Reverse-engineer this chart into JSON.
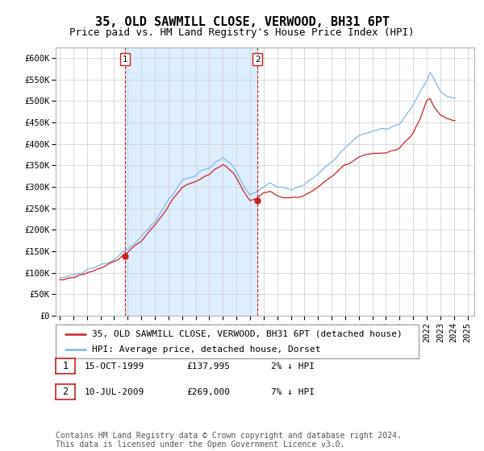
{
  "title": "35, OLD SAWMILL CLOSE, VERWOOD, BH31 6PT",
  "subtitle": "Price paid vs. HM Land Registry's House Price Index (HPI)",
  "ylabel_ticks": [
    "£0",
    "£50K",
    "£100K",
    "£150K",
    "£200K",
    "£250K",
    "£300K",
    "£350K",
    "£400K",
    "£450K",
    "£500K",
    "£550K",
    "£600K"
  ],
  "ylim": [
    0,
    625000
  ],
  "xlim_start": 1994.7,
  "xlim_end": 2025.5,
  "legend_line1": "35, OLD SAWMILL CLOSE, VERWOOD, BH31 6PT (detached house)",
  "legend_line2": "HPI: Average price, detached house, Dorset",
  "sale1_label": "1",
  "sale1_date": "15-OCT-1999",
  "sale1_price": "£137,995",
  "sale1_hpi": "2% ↓ HPI",
  "sale2_label": "2",
  "sale2_date": "10-JUL-2009",
  "sale2_price": "£269,000",
  "sale2_hpi": "7% ↓ HPI",
  "footnote": "Contains HM Land Registry data © Crown copyright and database right 2024.\nThis data is licensed under the Open Government Licence v3.0.",
  "hpi_color": "#7EB6E8",
  "price_color": "#CC2222",
  "sale_marker_color": "#CC2222",
  "sale_vline_color": "#CC2222",
  "shade_color": "#DDEEFF",
  "bg_color": "#ffffff",
  "grid_color": "#cccccc",
  "title_fontsize": 11,
  "subtitle_fontsize": 9,
  "tick_fontsize": 7.5,
  "legend_fontsize": 8,
  "table_fontsize": 8,
  "footnote_fontsize": 7,
  "sale1_x": 1999.79,
  "sale1_y": 137995,
  "sale2_x": 2009.54,
  "sale2_y": 269000,
  "xticks": [
    1995,
    1996,
    1997,
    1998,
    1999,
    2000,
    2001,
    2002,
    2003,
    2004,
    2005,
    2006,
    2007,
    2008,
    2009,
    2010,
    2011,
    2012,
    2013,
    2014,
    2015,
    2016,
    2017,
    2018,
    2019,
    2020,
    2021,
    2022,
    2023,
    2024,
    2025
  ]
}
